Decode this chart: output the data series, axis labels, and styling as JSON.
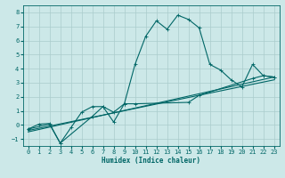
{
  "xlabel": "Humidex (Indice chaleur)",
  "bg_color": "#cce8e8",
  "grid_color": "#aacccc",
  "line_color": "#006666",
  "xlim": [
    -0.5,
    23.5
  ],
  "ylim": [
    -1.5,
    8.5
  ],
  "xticks": [
    0,
    1,
    2,
    3,
    4,
    5,
    6,
    7,
    8,
    9,
    10,
    11,
    12,
    13,
    14,
    15,
    16,
    17,
    18,
    19,
    20,
    21,
    22,
    23
  ],
  "yticks": [
    -1,
    0,
    1,
    2,
    3,
    4,
    5,
    6,
    7,
    8
  ],
  "series": [
    {
      "x": [
        0,
        1,
        2,
        3,
        4,
        5,
        6,
        7,
        8,
        9,
        10,
        11,
        12,
        13,
        14,
        15,
        16,
        17,
        18,
        19,
        20,
        21,
        22,
        23
      ],
      "y": [
        -0.3,
        0.05,
        0.1,
        -1.3,
        -0.2,
        0.9,
        1.3,
        1.3,
        0.2,
        1.5,
        4.3,
        6.3,
        7.4,
        6.8,
        7.8,
        7.5,
        6.9,
        4.3,
        3.9,
        3.2,
        2.7,
        4.3,
        3.5,
        3.4
      ],
      "has_marker": true
    },
    {
      "x": [
        0,
        2,
        3,
        6,
        7,
        8,
        9,
        10,
        15,
        16,
        21,
        22,
        23
      ],
      "y": [
        -0.3,
        0.05,
        -1.3,
        0.6,
        1.3,
        0.9,
        1.5,
        1.5,
        1.6,
        2.1,
        3.3,
        3.5,
        3.4
      ],
      "has_marker": true
    },
    {
      "x": [
        0,
        23
      ],
      "y": [
        -0.4,
        3.2
      ],
      "has_marker": false
    },
    {
      "x": [
        0,
        23
      ],
      "y": [
        -0.5,
        3.4
      ],
      "has_marker": false
    }
  ],
  "line_width": 0.8,
  "marker_size": 2.5,
  "font_size_tick": 5,
  "font_size_xlabel": 5.5
}
